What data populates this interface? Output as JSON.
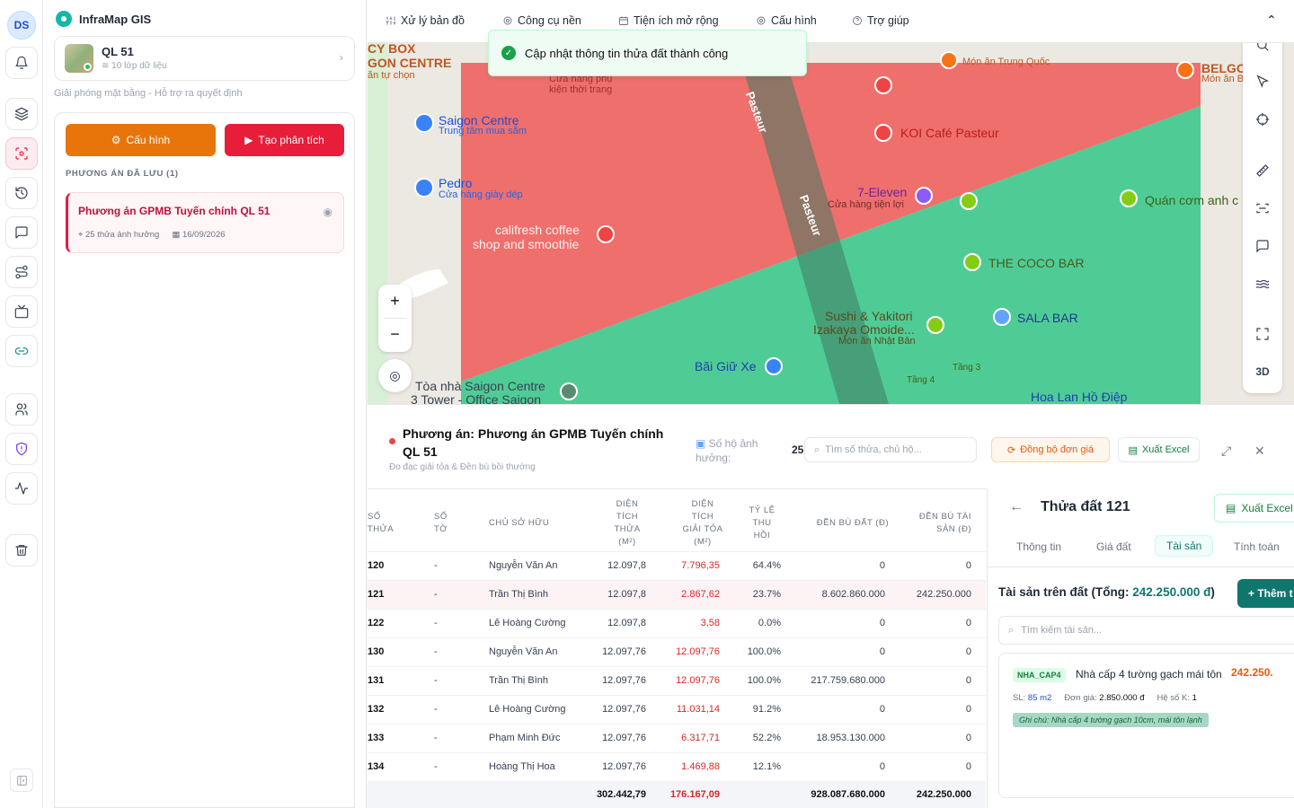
{
  "user": {
    "initials": "DS"
  },
  "app": {
    "name": "InfraMap GIS",
    "accent": "#14b8a6"
  },
  "project": {
    "name": "QL 51",
    "layers": "10 lớp dữ liệu",
    "subtitle": "Giải phóng mặt bằng - Hỗ trợ ra quyết định"
  },
  "actions": {
    "config": "Cấu hình",
    "analyze": "Tạo phân tích"
  },
  "saved": {
    "label": "PHƯƠNG ÁN ĐÃ LƯU (1)",
    "plan": {
      "title": "Phương án GPMB Tuyến chính QL 51",
      "affected": "25 thửa ảnh hưởng",
      "date": "16/09/2026"
    }
  },
  "toolbar": {
    "items": [
      "Xử lý bản đồ",
      "Công cụ nền",
      "Tiện ích mở rộng",
      "Cấu hình",
      "Trợ giúp"
    ]
  },
  "toast": {
    "message": "Cập nhật thông tin thửa đất thành công"
  },
  "map": {
    "pois": [
      {
        "name": "CY BOX",
        "sub": ""
      },
      {
        "name": "GON CENTRE",
        "sub": "ăn tự chọn"
      },
      {
        "name": "Saigon Centre",
        "sub": "Trung tâm mua sắm"
      },
      {
        "name": "Pedro",
        "sub": "Cửa hàng giày dép"
      },
      {
        "name": "califresh coffee",
        "sub": "shop and smoothie"
      },
      {
        "name": "Cửa hàng phụ",
        "sub": "kiện thời trang"
      },
      {
        "name": "Món ăn Trung Quốc",
        "sub": ""
      },
      {
        "name": "KOI Café Pasteur",
        "sub": ""
      },
      {
        "name": "7-Eleven",
        "sub": "Cửa hàng tiện lợi"
      },
      {
        "name": "Quán cơm anh c",
        "sub": ""
      },
      {
        "name": "THE COCO BAR",
        "sub": ""
      },
      {
        "name": "SALA BAR",
        "sub": ""
      },
      {
        "name": "Sushi & Yakitori",
        "sub": "Izakaya Omoide..."
      },
      {
        "name": "Món ăn Nhật Bản",
        "sub": ""
      },
      {
        "name": "Bãi Giữ Xe",
        "sub": ""
      },
      {
        "name": "Tòa nhà Saigon Centre",
        "sub": "3 Tower - Office Saigon"
      },
      {
        "name": "Hoa Lan Hồ Điệp",
        "sub": ""
      },
      {
        "name": "BELGO",
        "sub": "Món ăn B"
      },
      {
        "name": "Tầng 3",
        "sub": "Tầng 4"
      },
      {
        "name": "Pasteur",
        "sub": ""
      }
    ],
    "zoom_in": "+",
    "zoom_out": "−",
    "mode_3d": "3D",
    "colors": {
      "red": "#ef6f6c",
      "green": "#4fcc96"
    }
  },
  "plan_panel": {
    "title": "Phương án: Phương án GPMB Tuyến chính QL 51",
    "subtitle": "Đo đạc giải tỏa & Đền bù bồi thường",
    "households_label": "Số hộ ảnh hưởng:",
    "households_value": "25",
    "search_placeholder": "Tìm số thửa, chủ hộ...",
    "sync_label": "Đồng bộ đơn giá",
    "export_label": "Xuất Excel"
  },
  "table": {
    "headers": [
      "Số thửa",
      "Số tờ",
      "Chủ sở hữu",
      "Diện tích thửa (m²)",
      "Diện tích giải tỏa (m²)",
      "Tỷ lệ thu hồi",
      "Đền bù đất (đ)",
      "Đền bù tài sản (đ)"
    ],
    "rows": [
      {
        "thua": "120",
        "to": "-",
        "owner": "Nguyễn Văn An",
        "area": "12.097,8",
        "clear": "7.796,35",
        "ratio": "64.4%",
        "land": "0",
        "asset": "0"
      },
      {
        "thua": "121",
        "to": "-",
        "owner": "Trần Thị Bình",
        "area": "12.097,8",
        "clear": "2.867,62",
        "ratio": "23.7%",
        "land": "8.602.860.000",
        "asset": "242.250.000"
      },
      {
        "thua": "122",
        "to": "-",
        "owner": "Lê Hoàng Cường",
        "area": "12.097,8",
        "clear": "3,58",
        "ratio": "0.0%",
        "land": "0",
        "asset": "0"
      },
      {
        "thua": "130",
        "to": "-",
        "owner": "Nguyễn Văn An",
        "area": "12.097,76",
        "clear": "12.097,76",
        "ratio": "100.0%",
        "land": "0",
        "asset": "0"
      },
      {
        "thua": "131",
        "to": "-",
        "owner": "Trần Thị Bình",
        "area": "12.097,76",
        "clear": "12.097,76",
        "ratio": "100.0%",
        "land": "217.759.680.000",
        "asset": "0"
      },
      {
        "thua": "132",
        "to": "-",
        "owner": "Lê Hoàng Cường",
        "area": "12.097,76",
        "clear": "11.031,14",
        "ratio": "91.2%",
        "land": "0",
        "asset": "0"
      },
      {
        "thua": "133",
        "to": "-",
        "owner": "Phạm Minh Đức",
        "area": "12.097,76",
        "clear": "6.317,71",
        "ratio": "52.2%",
        "land": "18.953.130.000",
        "asset": "0"
      },
      {
        "thua": "134",
        "to": "-",
        "owner": "Hoàng Thị Hoa",
        "area": "12.097,76",
        "clear": "1.469,88",
        "ratio": "12.1%",
        "land": "0",
        "asset": "0"
      }
    ],
    "totals": {
      "area": "302.442,79",
      "clear": "176.167,09",
      "land": "928.087.680.000",
      "asset": "242.250.000"
    }
  },
  "detail": {
    "title": "Thửa đất 121",
    "export_label": "Xuất Excel",
    "tabs": [
      "Thông tin",
      "Giá đất",
      "Tài sản",
      "Tính toán"
    ],
    "assets_title": "Tài sản trên đất (Tổng:",
    "assets_total": "242.250.000 đ",
    "assets_close": ")",
    "add_label": "+ Thêm t",
    "search_placeholder": "Tìm kiếm tài sản...",
    "asset": {
      "tag": "NHA_CAP4",
      "name": "Nhà cấp 4 tường gạch mái tôn",
      "price": "242.250.",
      "qty_label": "SL:",
      "qty": "85 m2",
      "unit_label": "Đơn giá:",
      "unit": "2.850.000 đ",
      "coef_label": "Hệ số K:",
      "coef": "1",
      "note": "Ghi chú: Nhà cấp 4 tường gạch 10cm, mái tôn lạnh"
    }
  }
}
